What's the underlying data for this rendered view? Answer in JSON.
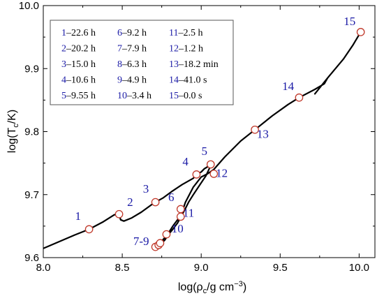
{
  "chart_data": {
    "type": "line",
    "xlabel": "log(ρ",
    "xlabel_sub": "c",
    "xlabel_tail": "/g cm",
    "xlabel_sup": "−3",
    "xlabel_end": ")",
    "ylabel": "log(T",
    "ylabel_sub": "c",
    "ylabel_tail": "/K)",
    "xlim": [
      8.0,
      10.1
    ],
    "ylim": [
      9.6,
      10.0
    ],
    "x_ticks": [
      "8.0",
      "8.5",
      "9.0",
      "9.5",
      "10.0"
    ],
    "y_ticks": [
      "9.6",
      "9.7",
      "9.8",
      "9.9",
      "10.0"
    ],
    "legend_position": "top-left",
    "series": [
      {
        "x": [
          7.9,
          8.05,
          8.2,
          8.29,
          8.38,
          8.45,
          8.48,
          8.49,
          8.51,
          8.56,
          8.62,
          8.68,
          8.71,
          8.76,
          8.82,
          8.88,
          8.95,
          8.97,
          9.0,
          9.02,
          9.04,
          9.06,
          9.03,
          8.99,
          8.95,
          8.92,
          8.9,
          8.87,
          8.85,
          8.82,
          8.79,
          8.77,
          8.75,
          8.74,
          8.73,
          8.72,
          8.71,
          8.73,
          8.76,
          8.79,
          8.82,
          8.85,
          8.87,
          8.9,
          8.95,
          9.0,
          9.04,
          9.08,
          9.15,
          9.25,
          9.34,
          9.45,
          9.55,
          9.62,
          9.72,
          9.78,
          9.8,
          9.72,
          9.8,
          9.9,
          9.96,
          10.01
        ],
        "y": [
          9.604,
          9.62,
          9.636,
          9.645,
          9.657,
          9.668,
          9.669,
          9.66,
          9.658,
          9.663,
          9.672,
          9.683,
          9.688,
          9.695,
          9.706,
          9.716,
          9.726,
          9.732,
          9.736,
          9.741,
          9.744,
          9.746,
          9.73,
          9.715,
          9.7,
          9.688,
          9.678,
          9.664,
          9.655,
          9.645,
          9.636,
          9.628,
          9.623,
          9.62,
          9.619,
          9.618,
          9.617,
          9.621,
          9.629,
          9.638,
          9.65,
          9.66,
          9.666,
          9.688,
          9.712,
          9.728,
          9.733,
          9.74,
          9.76,
          9.785,
          9.803,
          9.825,
          9.843,
          9.854,
          9.867,
          9.876,
          9.885,
          9.86,
          9.885,
          9.915,
          9.937,
          9.958
        ]
      }
    ],
    "points": [
      {
        "label": "1",
        "x": 8.29,
        "y": 9.645
      },
      {
        "label": "2",
        "x": 8.48,
        "y": 9.669
      },
      {
        "label": "3",
        "x": 8.71,
        "y": 9.688
      },
      {
        "label": "4",
        "x": 8.97,
        "y": 9.732
      },
      {
        "label": "5",
        "x": 9.06,
        "y": 9.748
      },
      {
        "label": "6",
        "x": 8.87,
        "y": 9.677
      },
      {
        "label": "7",
        "x": 8.71,
        "y": 9.617
      },
      {
        "label": "8",
        "x": 8.73,
        "y": 9.62
      },
      {
        "label": "9",
        "x": 8.74,
        "y": 9.623
      },
      {
        "label": "10",
        "x": 8.78,
        "y": 9.637
      },
      {
        "label": "11",
        "x": 8.87,
        "y": 9.665
      },
      {
        "label": "12",
        "x": 9.08,
        "y": 9.733
      },
      {
        "label": "13",
        "x": 9.34,
        "y": 9.803
      },
      {
        "label": "14",
        "x": 9.62,
        "y": 9.854
      },
      {
        "label": "15",
        "x": 10.01,
        "y": 9.958
      }
    ],
    "point_annotations": [
      {
        "text": "1",
        "x": 8.22,
        "y": 9.66
      },
      {
        "text": "2",
        "x": 8.55,
        "y": 9.682
      },
      {
        "text": "3",
        "x": 8.65,
        "y": 9.703
      },
      {
        "text": "4",
        "x": 8.9,
        "y": 9.746
      },
      {
        "text": "5",
        "x": 9.02,
        "y": 9.763
      },
      {
        "text": "6",
        "x": 8.81,
        "y": 9.69
      },
      {
        "text": "7-9",
        "x": 8.62,
        "y": 9.62
      },
      {
        "text": "10",
        "x": 8.85,
        "y": 9.64
      },
      {
        "text": "11",
        "x": 8.92,
        "y": 9.665
      },
      {
        "text": "12",
        "x": 9.13,
        "y": 9.728
      },
      {
        "text": "13",
        "x": 9.39,
        "y": 9.79
      },
      {
        "text": "14",
        "x": 9.55,
        "y": 9.866
      },
      {
        "text": "15",
        "x": 9.94,
        "y": 9.969
      }
    ],
    "legend": [
      [
        "1",
        "22.6 h"
      ],
      [
        "6",
        "9.2 h"
      ],
      [
        "11",
        "2.5 h"
      ],
      [
        "2",
        "20.2 h"
      ],
      [
        "7",
        "7.9 h"
      ],
      [
        "12",
        "1.2 h"
      ],
      [
        "3",
        "15.0 h"
      ],
      [
        "8",
        "6.3 h"
      ],
      [
        "13",
        "18.2 min"
      ],
      [
        "4",
        "10.6 h"
      ],
      [
        "9",
        "4.9 h"
      ],
      [
        "14",
        "41.0 s"
      ],
      [
        "5",
        "9.55 h"
      ],
      [
        "10",
        "3.4 h"
      ],
      [
        "15",
        "0.0 s"
      ]
    ],
    "legend_separator": "–",
    "colors": {
      "line": "#000000",
      "marker_edge": "#c0392b",
      "marker_fill": "#ffffff",
      "label": "#1a1aa6"
    }
  }
}
